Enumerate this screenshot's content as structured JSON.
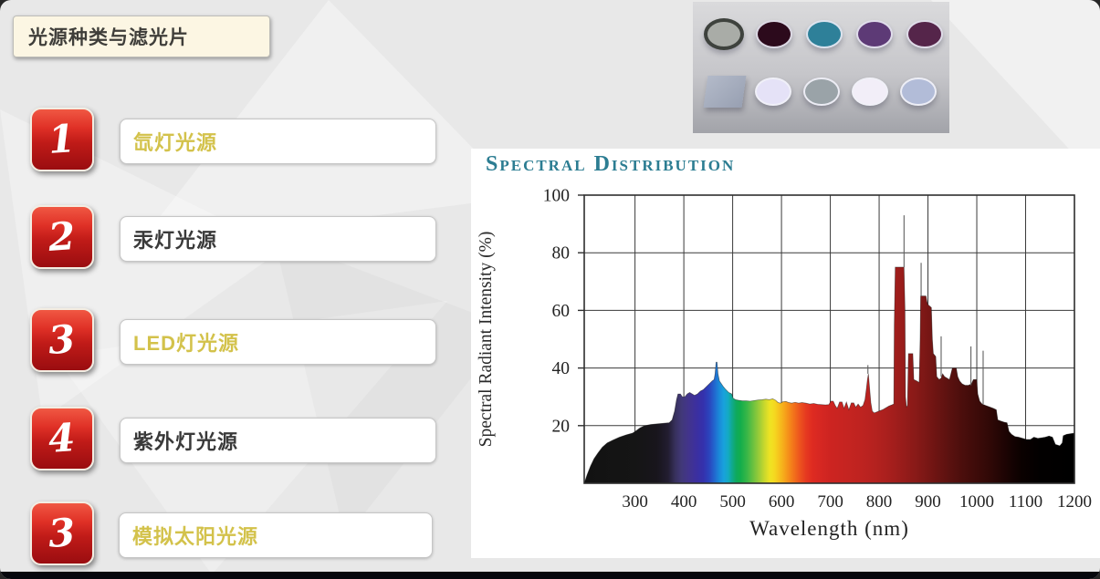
{
  "slide": {
    "title": "光源种类与滤光片",
    "items": [
      {
        "number": "1",
        "label": "氙灯光源",
        "color": "gold"
      },
      {
        "number": "2",
        "label": "汞灯光源",
        "color": "dark"
      },
      {
        "number": "3",
        "label": "LED灯光源",
        "color": "gold"
      },
      {
        "number": "4",
        "label": "紫外灯光源",
        "color": "dark"
      },
      {
        "number": "3",
        "label": "模拟太阳光源",
        "color": "gold"
      }
    ],
    "colors": {
      "gold": "#d3c24b",
      "dark": "#3a3a3a",
      "badge_top": "#e63c2d",
      "badge_bottom": "#9a0d10",
      "chart_title": "#2c7d92",
      "bottom_bar": "#06070d"
    }
  },
  "filters_image": {
    "row1": [
      {
        "name": "gray-ring-filter",
        "fill": "#a9aca7",
        "ring": "#3e423d"
      },
      {
        "name": "dark-maroon-filter",
        "fill": "#2c0a1c"
      },
      {
        "name": "teal-filter",
        "fill": "#2e8099"
      },
      {
        "name": "purple-filter",
        "fill": "#5d3a76"
      },
      {
        "name": "wine-filter",
        "fill": "#55254a"
      }
    ],
    "row2": [
      {
        "name": "gray-square-filter",
        "fill": "#b3bac9",
        "shape": "square"
      },
      {
        "name": "pale-lavender-filter",
        "fill": "#e5e2f7"
      },
      {
        "name": "gray-filter",
        "fill": "#9aa3a8"
      },
      {
        "name": "white-filter",
        "fill": "#f2eef8"
      },
      {
        "name": "pale-blue-filter",
        "fill": "#b2bcd8"
      }
    ]
  },
  "chart_data": {
    "type": "area",
    "title": "Spectral Distribution",
    "xlabel": "Wavelength (nm)",
    "ylabel": "Spectral Radiant Intensity (%)",
    "xlim": [
      196,
      1200
    ],
    "ylim": [
      0,
      100
    ],
    "x_ticks": [
      300,
      400,
      500,
      600,
      700,
      800,
      900,
      1000,
      1100,
      1200
    ],
    "y_ticks": [
      20,
      40,
      60,
      80,
      100
    ],
    "grid": true,
    "points": [
      [
        196,
        0
      ],
      [
        202,
        3
      ],
      [
        209,
        6
      ],
      [
        216,
        8.5
      ],
      [
        224,
        10.5
      ],
      [
        233,
        12.5
      ],
      [
        243,
        14
      ],
      [
        255,
        15
      ],
      [
        268,
        16
      ],
      [
        282,
        16.8
      ],
      [
        295,
        17.4
      ],
      [
        302,
        18.2
      ],
      [
        310,
        19.2
      ],
      [
        320,
        20
      ],
      [
        332,
        20.4
      ],
      [
        345,
        20.6
      ],
      [
        358,
        20.8
      ],
      [
        370,
        21
      ],
      [
        376,
        22
      ],
      [
        381,
        25
      ],
      [
        385,
        29
      ],
      [
        388,
        31
      ],
      [
        393,
        31
      ],
      [
        397,
        30
      ],
      [
        402,
        30
      ],
      [
        407,
        31
      ],
      [
        412,
        31.5
      ],
      [
        417,
        31
      ],
      [
        422,
        30.5
      ],
      [
        428,
        31
      ],
      [
        434,
        32
      ],
      [
        440,
        32.5
      ],
      [
        446,
        33.5
      ],
      [
        452,
        34.5
      ],
      [
        458,
        35.5
      ],
      [
        462,
        36
      ],
      [
        464,
        38
      ],
      [
        466,
        42
      ],
      [
        468,
        42
      ],
      [
        470,
        38
      ],
      [
        473,
        35.5
      ],
      [
        477,
        34.5
      ],
      [
        481,
        33.5
      ],
      [
        486,
        32.5
      ],
      [
        492,
        31.5
      ],
      [
        498,
        31
      ],
      [
        501,
        29.5
      ],
      [
        506,
        29
      ],
      [
        512,
        28.8
      ],
      [
        520,
        28.6
      ],
      [
        528,
        28.6
      ],
      [
        536,
        28.5
      ],
      [
        544,
        28.7
      ],
      [
        552,
        28.9
      ],
      [
        560,
        29
      ],
      [
        568,
        29.2
      ],
      [
        575,
        29
      ],
      [
        582,
        29.3
      ],
      [
        588,
        28.8
      ],
      [
        593,
        28
      ],
      [
        598,
        27.8
      ],
      [
        603,
        28.3
      ],
      [
        609,
        28.4
      ],
      [
        615,
        28
      ],
      [
        621,
        27.8
      ],
      [
        628,
        28.1
      ],
      [
        635,
        27.8
      ],
      [
        642,
        28
      ],
      [
        650,
        27.8
      ],
      [
        658,
        27.5
      ],
      [
        666,
        27.7
      ],
      [
        674,
        27.4
      ],
      [
        682,
        27.3
      ],
      [
        690,
        27.2
      ],
      [
        697,
        27.3
      ],
      [
        701,
        28.5
      ],
      [
        706,
        28.5
      ],
      [
        710,
        27
      ],
      [
        714,
        26
      ],
      [
        719,
        28.2
      ],
      [
        724,
        28.2
      ],
      [
        728,
        26
      ],
      [
        733,
        28.2
      ],
      [
        738,
        25.5
      ],
      [
        743,
        27.9
      ],
      [
        748,
        27.9
      ],
      [
        752,
        26.4
      ],
      [
        757,
        27.5
      ],
      [
        762,
        26.4
      ],
      [
        767,
        27
      ],
      [
        771,
        29
      ],
      [
        774,
        33
      ],
      [
        776,
        36
      ],
      [
        778,
        38
      ],
      [
        780,
        34
      ],
      [
        783,
        28
      ],
      [
        786,
        25
      ],
      [
        790,
        24.4
      ],
      [
        796,
        24.8
      ],
      [
        802,
        25.2
      ],
      [
        808,
        25.6
      ],
      [
        814,
        26.2
      ],
      [
        820,
        26.8
      ],
      [
        826,
        27.2
      ],
      [
        830,
        27.5
      ],
      [
        831,
        55
      ],
      [
        833,
        75
      ],
      [
        851,
        75
      ],
      [
        853,
        60
      ],
      [
        854,
        30
      ],
      [
        856,
        26.5
      ],
      [
        858,
        27
      ],
      [
        860,
        45
      ],
      [
        869,
        45
      ],
      [
        871,
        36
      ],
      [
        877,
        35.5
      ],
      [
        882,
        35
      ],
      [
        884,
        50
      ],
      [
        885,
        65
      ],
      [
        896,
        65
      ],
      [
        898,
        63
      ],
      [
        900,
        62
      ],
      [
        907,
        61
      ],
      [
        909,
        50
      ],
      [
        911,
        45
      ],
      [
        916,
        44
      ],
      [
        918,
        37
      ],
      [
        923,
        36
      ],
      [
        927,
        36.5
      ],
      [
        930,
        38
      ],
      [
        934,
        37
      ],
      [
        939,
        36.5
      ],
      [
        944,
        36
      ],
      [
        947,
        38
      ],
      [
        950,
        40
      ],
      [
        958,
        40
      ],
      [
        961,
        37
      ],
      [
        965,
        35.5
      ],
      [
        970,
        34.5
      ],
      [
        976,
        34
      ],
      [
        983,
        34
      ],
      [
        989,
        34.5
      ],
      [
        993,
        36
      ],
      [
        1000,
        36
      ],
      [
        1002,
        31
      ],
      [
        1006,
        28.5
      ],
      [
        1011,
        27.5
      ],
      [
        1018,
        27
      ],
      [
        1026,
        26.5
      ],
      [
        1034,
        26
      ],
      [
        1040,
        25.5
      ],
      [
        1043,
        22
      ],
      [
        1049,
        21.6
      ],
      [
        1056,
        21.2
      ],
      [
        1062,
        21
      ],
      [
        1066,
        18
      ],
      [
        1071,
        17
      ],
      [
        1078,
        16.2
      ],
      [
        1086,
        16
      ],
      [
        1094,
        15.6
      ],
      [
        1102,
        15.2
      ],
      [
        1110,
        15.2
      ],
      [
        1117,
        16
      ],
      [
        1125,
        15.6
      ],
      [
        1133,
        15.8
      ],
      [
        1140,
        16
      ],
      [
        1148,
        16.4
      ],
      [
        1155,
        16
      ],
      [
        1161,
        13.5
      ],
      [
        1170,
        13
      ],
      [
        1175,
        14
      ],
      [
        1177,
        16.5
      ],
      [
        1184,
        17
      ],
      [
        1192,
        17.2
      ],
      [
        1200,
        17.4
      ]
    ],
    "line_spikes": [
      [
        777,
        38,
        41
      ],
      [
        851,
        75,
        93
      ],
      [
        886,
        65,
        76.5
      ],
      [
        927,
        37,
        51
      ],
      [
        988,
        34,
        47.5
      ],
      [
        1013,
        27.5,
        46
      ]
    ],
    "gradient_stops": [
      [
        196,
        "#121212"
      ],
      [
        300,
        "#151515"
      ],
      [
        345,
        "#18151c"
      ],
      [
        368,
        "#221d31"
      ],
      [
        382,
        "#37305c"
      ],
      [
        395,
        "#413878"
      ],
      [
        410,
        "#42348c"
      ],
      [
        425,
        "#3c2f9e"
      ],
      [
        440,
        "#3431ad"
      ],
      [
        452,
        "#2b44bd"
      ],
      [
        462,
        "#2264cd"
      ],
      [
        472,
        "#1b88d8"
      ],
      [
        482,
        "#18a2dc"
      ],
      [
        491,
        "#14aac2"
      ],
      [
        499,
        "#10a98c"
      ],
      [
        507,
        "#0fa95f"
      ],
      [
        516,
        "#12ad4b"
      ],
      [
        530,
        "#3bb747"
      ],
      [
        543,
        "#6fc23f"
      ],
      [
        555,
        "#9fcd37"
      ],
      [
        566,
        "#ccd92c"
      ],
      [
        576,
        "#eee323"
      ],
      [
        585,
        "#f4da20"
      ],
      [
        594,
        "#f6c51d"
      ],
      [
        604,
        "#f6ab1b"
      ],
      [
        615,
        "#f58d1a"
      ],
      [
        626,
        "#f2701b"
      ],
      [
        638,
        "#ec521e"
      ],
      [
        650,
        "#e63a20"
      ],
      [
        663,
        "#df2b21"
      ],
      [
        680,
        "#d62722"
      ],
      [
        700,
        "#cd2421"
      ],
      [
        730,
        "#c62421"
      ],
      [
        760,
        "#bf2320"
      ],
      [
        790,
        "#b5221f"
      ],
      [
        820,
        "#a81f1d"
      ],
      [
        850,
        "#971c1a"
      ],
      [
        880,
        "#851917"
      ],
      [
        910,
        "#711513"
      ],
      [
        940,
        "#5d1210"
      ],
      [
        970,
        "#4b0e0c"
      ],
      [
        1000,
        "#3d0b09"
      ],
      [
        1030,
        "#2e0806"
      ],
      [
        1060,
        "#1c0403"
      ],
      [
        1090,
        "#0b0100"
      ],
      [
        1130,
        "#020000"
      ],
      [
        1200,
        "#000000"
      ]
    ]
  }
}
